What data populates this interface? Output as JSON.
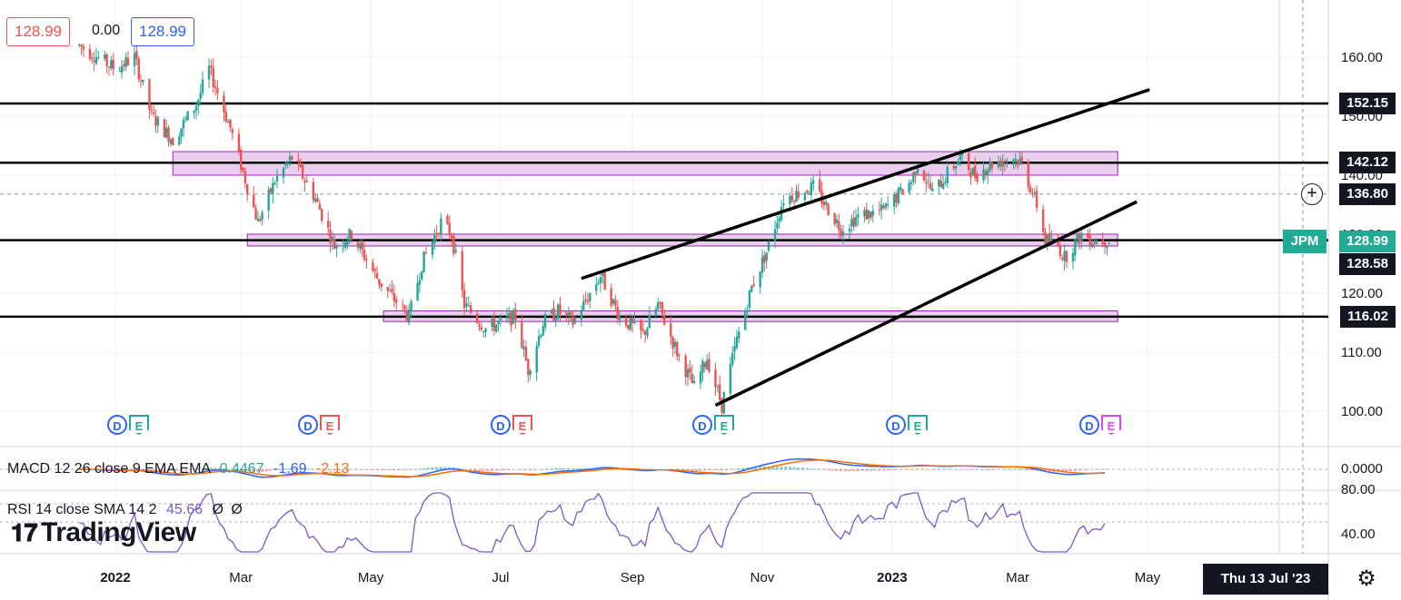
{
  "header": {
    "open_value": "128.99",
    "change_value": "0.00",
    "close_value": "128.99"
  },
  "price_tags": {
    "res_top": "152.15",
    "res_mid": "142.12",
    "crosshair": "136.80",
    "symbol": "JPM",
    "last_price": "128.99",
    "support_mid": "128.58",
    "support_low": "116.02"
  },
  "earnings_markers": [
    "D",
    "E"
  ],
  "indicators": {
    "macd": {
      "label": "MACD 12 26 close 9 EMA EMA",
      "hist": "0.4467",
      "macd": "-1.69",
      "signal": "-2.13",
      "axis_label": "0.0000",
      "colors": {
        "macd": "#2962ff",
        "signal": "#ff6d00",
        "hist_pos": "#26a69a",
        "hist_neg": "#ef5350"
      }
    },
    "rsi": {
      "label": "RSI 14 close SMA 14 2",
      "value": "45.66",
      "sym1": "Ø",
      "sym2": "Ø",
      "axis_labels": [
        "80.00",
        "40.00"
      ],
      "color": "#7e57c2"
    }
  },
  "footer": {
    "logo_text": "TradingView",
    "date_box": "Thu 13 Jul '23",
    "settings_icon": "gear-icon"
  },
  "colors": {
    "up": "#26a69a",
    "down": "#ef5350",
    "zone_fill": "#e1bee7",
    "zone_border": "#9c27b0",
    "line": "#000000",
    "tag_bg": "#131722",
    "symbol_tag_bg": "#22ab94"
  },
  "chart_data": {
    "type": "candlestick",
    "symbol": "JPM",
    "ylim": [
      95,
      166
    ],
    "y_ticks": [
      100,
      110,
      120,
      130,
      140,
      150,
      160
    ],
    "y_tick_labels": [
      "100.00",
      "110.00",
      "120.00",
      "130.00",
      "140.00",
      "150.00",
      "160.00"
    ],
    "x_tick_labels": [
      "2022",
      "Mar",
      "May",
      "Jul",
      "Sep",
      "Nov",
      "2023",
      "Mar",
      "May"
    ],
    "horizontal_lines": [
      152.15,
      142.12,
      128.99,
      116.02
    ],
    "crosshair_price": 136.8,
    "zones": [
      {
        "from": 140.0,
        "to": 144.0
      },
      {
        "from": 128.0,
        "to": 130.0
      },
      {
        "from": 115.2,
        "to": 117.0
      }
    ],
    "trend_channel": {
      "upper": [
        [
          "2022-08-08",
          122.5
        ],
        [
          "2023-05-02",
          154.5
        ]
      ],
      "lower": [
        [
          "2022-10-10",
          101.0
        ],
        [
          "2023-04-26",
          135.5
        ]
      ]
    },
    "price_path": [
      [
        "2021-12-15",
        162
      ],
      [
        "2022-01-01",
        158
      ],
      [
        "2022-01-10",
        160
      ],
      [
        "2022-01-18",
        150
      ],
      [
        "2022-01-28",
        146
      ],
      [
        "2022-02-08",
        152
      ],
      [
        "2022-02-14",
        158
      ],
      [
        "2022-02-24",
        148
      ],
      [
        "2022-03-04",
        138
      ],
      [
        "2022-03-09",
        132
      ],
      [
        "2022-03-17",
        139
      ],
      [
        "2022-03-25",
        143
      ],
      [
        "2022-04-05",
        136
      ],
      [
        "2022-04-14",
        128
      ],
      [
        "2022-04-22",
        130
      ],
      [
        "2022-05-05",
        122
      ],
      [
        "2022-05-19",
        116
      ],
      [
        "2022-05-25",
        125
      ],
      [
        "2022-06-03",
        132
      ],
      [
        "2022-06-08",
        130
      ],
      [
        "2022-06-14",
        118
      ],
      [
        "2022-06-24",
        114
      ],
      [
        "2022-07-08",
        116
      ],
      [
        "2022-07-14",
        107
      ],
      [
        "2022-07-21",
        115
      ],
      [
        "2022-07-28",
        117
      ],
      [
        "2022-08-04",
        115
      ],
      [
        "2022-08-17",
        123
      ],
      [
        "2022-08-26",
        116
      ],
      [
        "2022-09-06",
        113
      ],
      [
        "2022-09-13",
        118
      ],
      [
        "2022-09-22",
        110
      ],
      [
        "2022-09-30",
        104
      ],
      [
        "2022-10-06",
        109
      ],
      [
        "2022-10-13",
        101
      ],
      [
        "2022-10-20",
        112
      ],
      [
        "2022-10-27",
        121
      ],
      [
        "2022-11-03",
        127
      ],
      [
        "2022-11-11",
        136
      ],
      [
        "2022-11-25",
        138
      ],
      [
        "2022-12-08",
        131
      ],
      [
        "2022-12-16",
        133
      ],
      [
        "2022-12-28",
        134
      ],
      [
        "2023-01-10",
        139
      ],
      [
        "2023-01-13",
        142
      ],
      [
        "2023-01-20",
        137
      ],
      [
        "2023-02-02",
        143
      ],
      [
        "2023-02-09",
        140
      ],
      [
        "2023-02-17",
        142
      ],
      [
        "2023-02-27",
        143
      ],
      [
        "2023-03-03",
        142
      ],
      [
        "2023-03-10",
        135
      ],
      [
        "2023-03-14",
        129
      ],
      [
        "2023-03-20",
        128
      ],
      [
        "2023-03-23",
        126
      ],
      [
        "2023-03-31",
        130
      ],
      [
        "2023-04-06",
        129
      ],
      [
        "2023-04-13",
        128.99
      ]
    ]
  }
}
